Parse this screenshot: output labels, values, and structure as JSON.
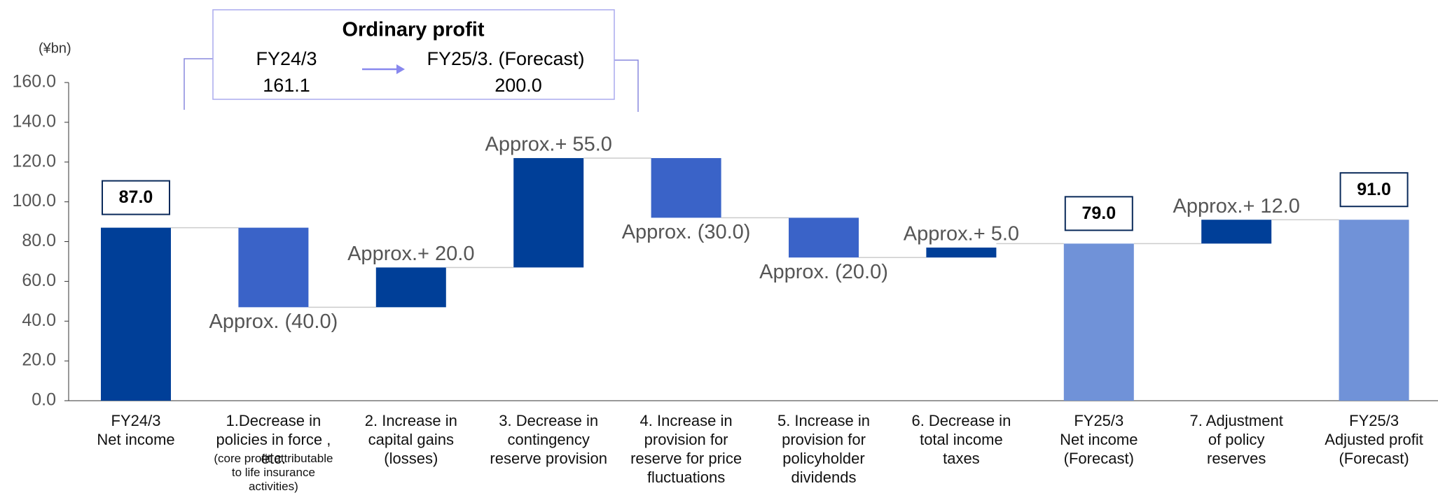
{
  "chart_data": {
    "type": "waterfall",
    "unit_label": "(¥bn)",
    "categories": [
      "FY24/3\nNet income",
      "1.Decrease in\npolicies in force , etc.",
      "2. Increase in\ncapital gains\n(losses)",
      "3. Decrease in\ncontingency\nreserve provision",
      "4. Increase in\nprovision for\nreserve for price\nfluctuations",
      "5. Increase in\nprovision for\npolicyholder\ndividends",
      "6. Decrease in\ntotal income\ntaxes",
      "FY25/3\nNet income\n(Forecast)",
      "7. Adjustment\nof policy\nreserves",
      "FY25/3\nAdjusted profit\n(Forecast)"
    ],
    "category_1_note": "(core profit attributable\nto life insurance\nactivities)",
    "kinds": [
      "total",
      "delta",
      "delta",
      "delta",
      "delta",
      "delta",
      "delta",
      "total",
      "delta",
      "total"
    ],
    "values": [
      87,
      -40,
      20,
      55,
      -30,
      -20,
      5,
      79,
      12,
      91
    ],
    "value_labels": [
      "87.0",
      "Approx. (40.0)",
      "Approx.+ 20.0",
      "Approx.+ 55.0",
      "Approx. (30.0)",
      "Approx. (20.0)",
      "Approx.+ 5.0",
      "79.0",
      "Approx.+ 12.0",
      "91.0"
    ],
    "colors": [
      "#003f98",
      "#3a63c8",
      "#003f98",
      "#003f98",
      "#3a63c8",
      "#3a63c8",
      "#003f98",
      "#7092d8",
      "#003f98",
      "#7092d8"
    ],
    "ylim": [
      0,
      160
    ],
    "yticks": [
      {
        "value": 0,
        "label": "0.0"
      },
      {
        "value": 20,
        "label": "20.0"
      },
      {
        "value": 40,
        "label": "40.0"
      },
      {
        "value": 60,
        "label": "60.0"
      },
      {
        "value": 80,
        "label": "80.0"
      },
      {
        "value": 100,
        "label": "100.0"
      },
      {
        "value": 120,
        "label": "120.0"
      },
      {
        "value": 140,
        "label": "140.0"
      },
      {
        "value": 160,
        "label": "160.0"
      }
    ],
    "inset": {
      "title": "Ordinary profit",
      "from_label": "FY24/3",
      "from_value": "161.1",
      "to_label": "FY25/3. (Forecast)",
      "to_value": "200.0"
    }
  }
}
